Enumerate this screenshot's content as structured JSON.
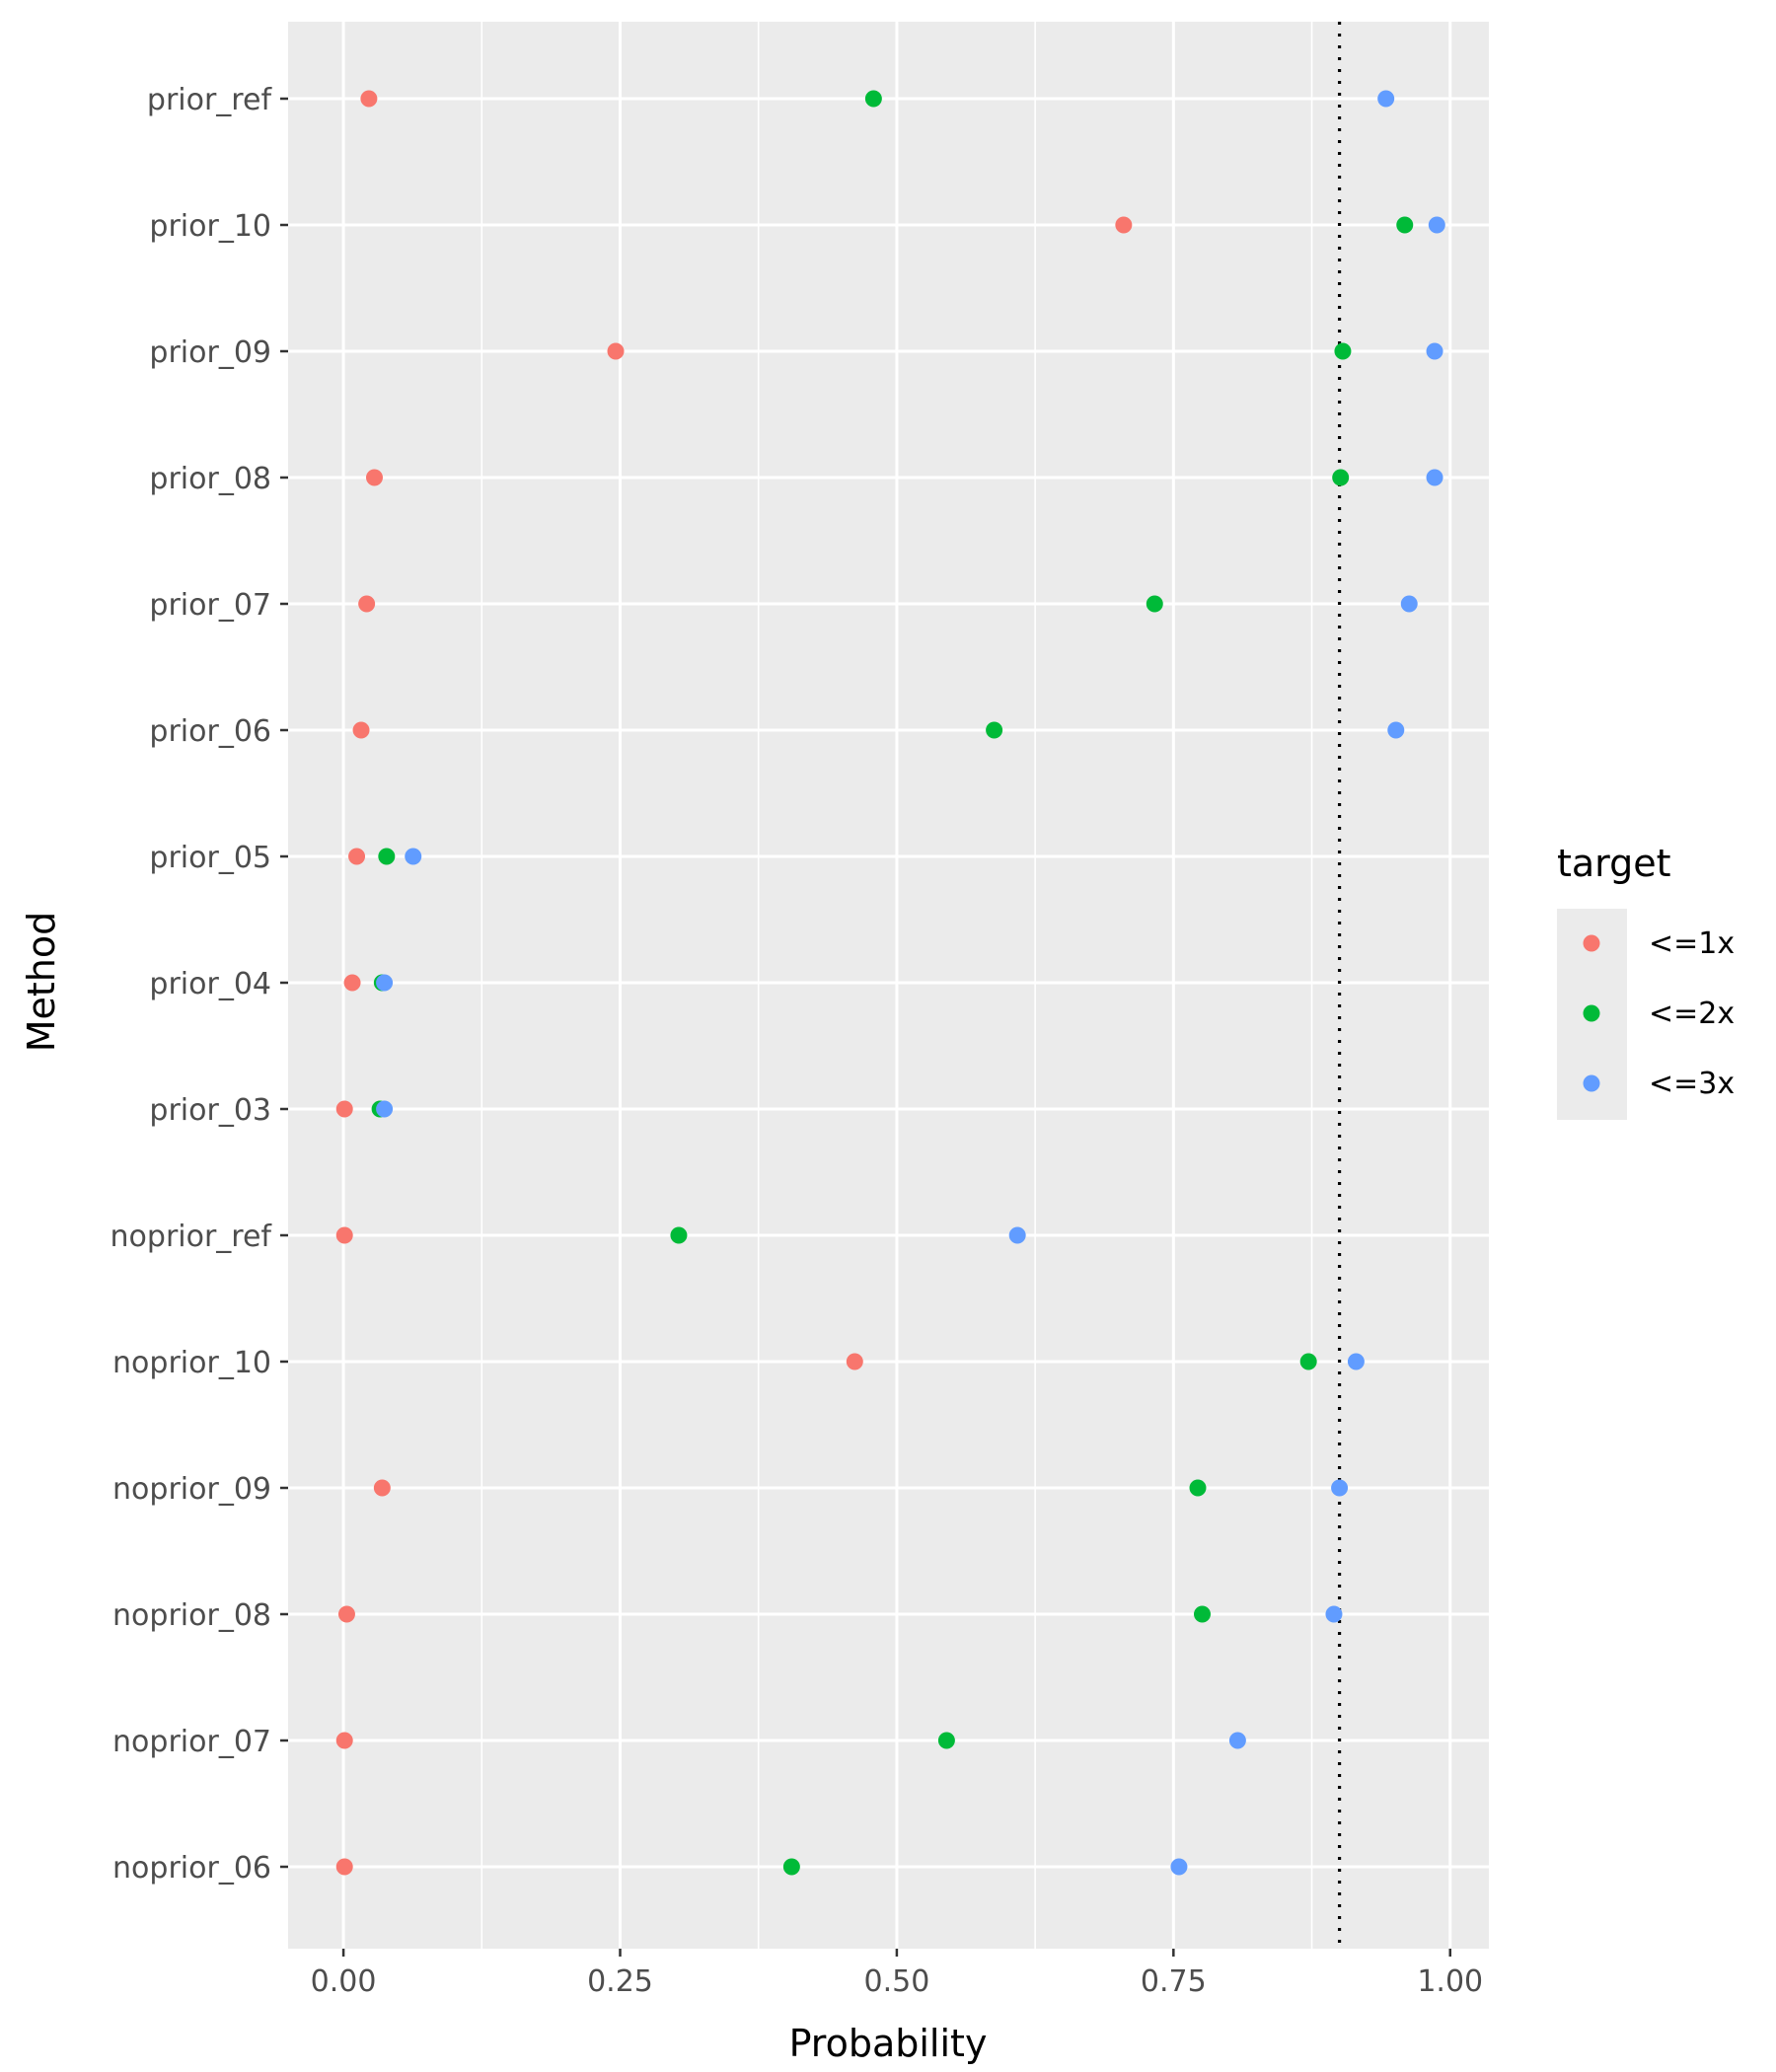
{
  "chart_data": {
    "type": "scatter",
    "xlabel": "Probability",
    "ylabel": "Method",
    "xlim": [
      -0.05,
      1.035
    ],
    "x_ticks": [
      0.0,
      0.25,
      0.5,
      0.75,
      1.0
    ],
    "x_tick_labels": [
      "0.00",
      "0.25",
      "0.50",
      "0.75",
      "1.00"
    ],
    "categories": [
      "prior_ref",
      "prior_10",
      "prior_09",
      "prior_08",
      "prior_07",
      "prior_06",
      "prior_05",
      "prior_04",
      "prior_03",
      "noprior_ref",
      "noprior_10",
      "noprior_09",
      "noprior_08",
      "noprior_07",
      "noprior_06"
    ],
    "reference_line": {
      "x": 0.9,
      "style": "dotted"
    },
    "grid": true,
    "legend": {
      "title": "target",
      "position": "right"
    },
    "series": [
      {
        "name": "<=1x",
        "color": "#F8766D",
        "values": [
          0.023,
          0.705,
          0.246,
          0.028,
          0.021,
          0.016,
          0.012,
          0.008,
          0.001,
          0.001,
          0.462,
          0.035,
          0.003,
          0.001,
          0.001
        ]
      },
      {
        "name": "<=2x",
        "color": "#00BA38",
        "values": [
          0.479,
          0.959,
          0.903,
          0.901,
          0.733,
          0.588,
          0.039,
          0.035,
          0.033,
          0.303,
          0.872,
          0.772,
          0.776,
          0.545,
          0.405
        ]
      },
      {
        "name": "<=3x",
        "color": "#619CFF",
        "values": [
          0.942,
          0.988,
          0.986,
          0.986,
          0.963,
          0.951,
          0.063,
          0.037,
          0.037,
          0.609,
          0.915,
          0.9,
          0.895,
          0.808,
          0.755
        ]
      }
    ]
  }
}
